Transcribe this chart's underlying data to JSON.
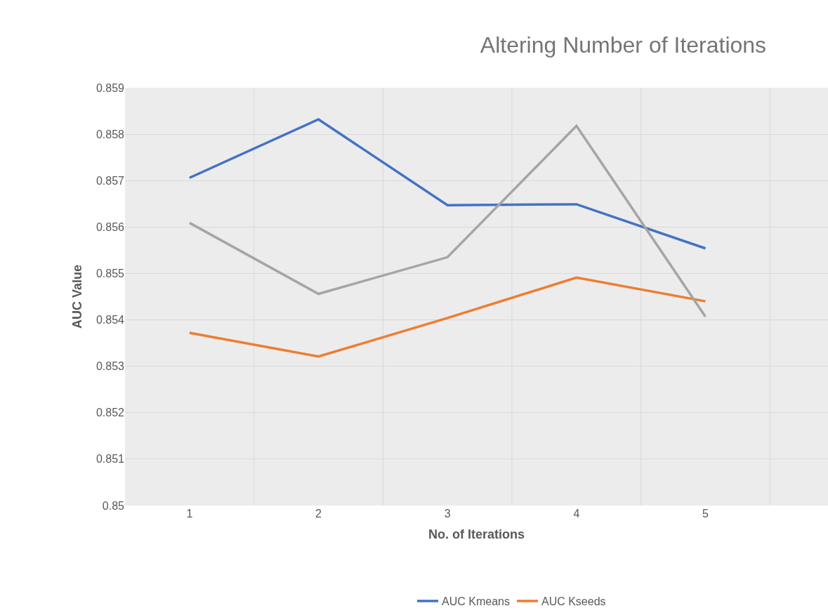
{
  "chart_data": {
    "type": "line",
    "title": "Altering Number of Iterations",
    "xlabel": "No. of Iterations",
    "ylabel": "AUC Value",
    "categories": [
      "1",
      "2",
      "3",
      "4",
      "5"
    ],
    "series": [
      {
        "name": "AUC Kmeans",
        "color": "#4472c4",
        "values": [
          0.85706,
          0.85832,
          0.85647,
          0.85649,
          0.85554
        ]
      },
      {
        "name": "AUC Kseeds",
        "color": "#ed7d31",
        "values": [
          0.85372,
          0.85321,
          0.85404,
          0.85491,
          0.8544
        ]
      },
      {
        "color": "#a5a5a5",
        "values": [
          0.85609,
          0.85456,
          0.85535,
          0.85818,
          0.85407
        ]
      }
    ],
    "ylim": [
      0.85,
      0.859
    ],
    "yticks": [
      0.85,
      0.851,
      0.852,
      0.853,
      0.854,
      0.855,
      0.856,
      0.857,
      0.858,
      0.859
    ],
    "grid": true,
    "legend": "bottom",
    "marker": "none",
    "line_style": "solid"
  }
}
